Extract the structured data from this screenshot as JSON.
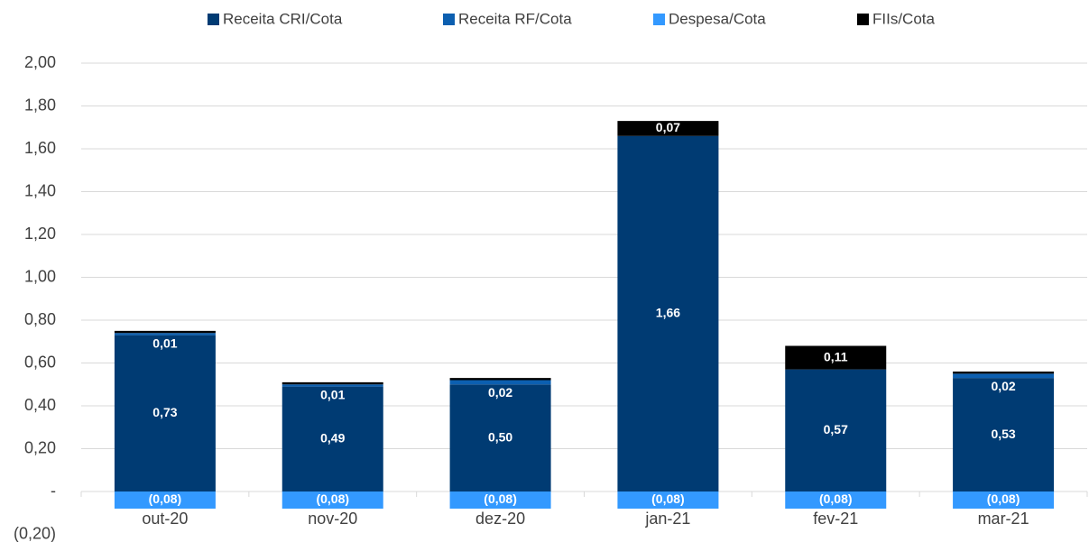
{
  "chart_data": {
    "type": "bar",
    "stacked": true,
    "categories": [
      "out-20",
      "nov-20",
      "dez-20",
      "jan-21",
      "fev-21",
      "mar-21"
    ],
    "series": [
      {
        "name": "Receita CRI/Cota",
        "color": "#003b73",
        "values": [
          0.73,
          0.49,
          0.5,
          1.66,
          0.57,
          0.53
        ],
        "value_labels": [
          "0,73",
          "0,49",
          "0,50",
          "1,66",
          "0,57",
          "0,53"
        ]
      },
      {
        "name": "Receita RF/Cota",
        "color": "#0c5fb0",
        "values": [
          0.01,
          0.01,
          0.02,
          0,
          0,
          0.02
        ],
        "value_labels": [
          "0,01",
          "0,01",
          "0,02",
          null,
          null,
          "0,02"
        ]
      },
      {
        "name": "Despesa/Cota",
        "color": "#3399ff",
        "values": [
          -0.08,
          -0.08,
          -0.08,
          -0.08,
          -0.08,
          -0.08
        ],
        "value_labels": [
          "(0,08)",
          "(0,08)",
          "(0,08)",
          "(0,08)",
          "(0,08)",
          "(0,08)"
        ]
      },
      {
        "name": "FIIs/Cota",
        "color": "#000000",
        "values": [
          0.01,
          0.01,
          0.01,
          0.07,
          0.11,
          0.01
        ],
        "value_labels": [
          null,
          null,
          null,
          "0,07",
          "0,11",
          null
        ]
      }
    ],
    "ylim": [
      -0.2,
      2.0
    ],
    "yticks": [
      {
        "value": -0.2,
        "label": "(0,20)"
      },
      {
        "value": 0,
        "label": "-"
      },
      {
        "value": 0.2,
        "label": "0,20"
      },
      {
        "value": 0.4,
        "label": "0,40"
      },
      {
        "value": 0.6,
        "label": "0,60"
      },
      {
        "value": 0.8,
        "label": "0,80"
      },
      {
        "value": 1.0,
        "label": "1,00"
      },
      {
        "value": 1.2,
        "label": "1,20"
      },
      {
        "value": 1.4,
        "label": "1,40"
      },
      {
        "value": 1.6,
        "label": "1,60"
      },
      {
        "value": 1.8,
        "label": "1,80"
      },
      {
        "value": 2.0,
        "label": "2,00"
      }
    ],
    "grid": true,
    "legend": "top"
  }
}
